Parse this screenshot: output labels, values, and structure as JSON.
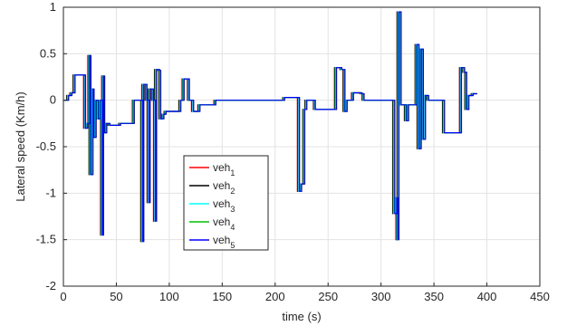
{
  "chart_data": {
    "type": "line",
    "title": "",
    "xlabel": "time (s)",
    "ylabel": "Lateral speed  (Km/h)",
    "xlim": [
      0,
      450
    ],
    "ylim": [
      -2,
      1
    ],
    "xticks": [
      "0",
      "50",
      "100",
      "150",
      "200",
      "250",
      "300",
      "350",
      "400",
      "450"
    ],
    "yticks": [
      "-2",
      "-1.5",
      "-1",
      "-0.5",
      "0",
      "0.5",
      "1"
    ],
    "grid": true,
    "legend_position": "center-left",
    "series": [
      {
        "name": "veh",
        "sub": "1",
        "color": "#ff0000",
        "offset": 0.0
      },
      {
        "name": "veh",
        "sub": "2",
        "color": "#000000",
        "offset": 0.5
      },
      {
        "name": "veh",
        "sub": "3",
        "color": "#00ffff",
        "offset": 1.0
      },
      {
        "name": "veh",
        "sub": "4",
        "color": "#00c000",
        "offset": 1.5
      },
      {
        "name": "veh",
        "sub": "5",
        "color": "#0000ff",
        "offset": 2.0
      }
    ],
    "profile": [
      [
        0,
        0
      ],
      [
        3,
        0.05
      ],
      [
        6,
        0.08
      ],
      [
        9,
        0.27
      ],
      [
        18,
        0.27
      ],
      [
        19,
        -0.3
      ],
      [
        21,
        -0.25
      ],
      [
        23,
        0.48
      ],
      [
        24,
        -0.8
      ],
      [
        26,
        0.12
      ],
      [
        27,
        -0.4
      ],
      [
        29,
        0.0
      ],
      [
        31,
        -0.2
      ],
      [
        33,
        0.0
      ],
      [
        35,
        -1.45
      ],
      [
        36,
        0.26
      ],
      [
        37,
        -0.35
      ],
      [
        39,
        -0.25
      ],
      [
        42,
        -0.27
      ],
      [
        50,
        -0.27
      ],
      [
        52,
        -0.25
      ],
      [
        64,
        -0.25
      ],
      [
        65,
        0.0
      ],
      [
        72,
        0.0
      ],
      [
        73,
        -1.52
      ],
      [
        74,
        0.17
      ],
      [
        77,
        0.0
      ],
      [
        79,
        -1.1
      ],
      [
        80,
        0.12
      ],
      [
        83,
        0.0
      ],
      [
        85,
        -1.3
      ],
      [
        86,
        0.33
      ],
      [
        89,
        0.32
      ],
      [
        90,
        -0.2
      ],
      [
        93,
        -0.15
      ],
      [
        95,
        -0.12
      ],
      [
        108,
        -0.12
      ],
      [
        109,
        0.0
      ],
      [
        111,
        0.0
      ],
      [
        112,
        0.23
      ],
      [
        115,
        0.23
      ],
      [
        117,
        0.0
      ],
      [
        120,
        0.0
      ],
      [
        121,
        -0.12
      ],
      [
        126,
        -0.12
      ],
      [
        127,
        -0.05
      ],
      [
        141,
        -0.05
      ],
      [
        142,
        0.0
      ],
      [
        205,
        0.0
      ],
      [
        207,
        0.03
      ],
      [
        219,
        0.03
      ],
      [
        221,
        -0.98
      ],
      [
        223,
        -0.9
      ],
      [
        226,
        -0.1
      ],
      [
        228,
        0.0
      ],
      [
        234,
        0.0
      ],
      [
        236,
        -0.1
      ],
      [
        255,
        -0.1
      ],
      [
        256,
        0.35
      ],
      [
        261,
        0.33
      ],
      [
        264,
        -0.12
      ],
      [
        266,
        0.0
      ],
      [
        270,
        0.0
      ],
      [
        272,
        0.08
      ],
      [
        280,
        0.07
      ],
      [
        282,
        0.0
      ],
      [
        309,
        0.0
      ],
      [
        311,
        -1.22
      ],
      [
        313,
        -1.05
      ],
      [
        314,
        -1.5
      ],
      [
        315,
        0.95
      ],
      [
        317,
        -0.05
      ],
      [
        321,
        -0.05
      ],
      [
        322,
        -0.22
      ],
      [
        324,
        -0.05
      ],
      [
        331,
        -0.05
      ],
      [
        332,
        0.6
      ],
      [
        334,
        -0.52
      ],
      [
        336,
        0.55
      ],
      [
        338,
        -0.42
      ],
      [
        340,
        0.05
      ],
      [
        343,
        0.0
      ],
      [
        356,
        0.0
      ],
      [
        358,
        -0.35
      ],
      [
        372,
        -0.35
      ],
      [
        374,
        0.35
      ],
      [
        377,
        0.3
      ],
      [
        379,
        -0.1
      ],
      [
        381,
        0.05
      ],
      [
        385,
        0.07
      ],
      [
        388,
        0.07
      ],
      [
        389,
        0.07
      ]
    ]
  }
}
